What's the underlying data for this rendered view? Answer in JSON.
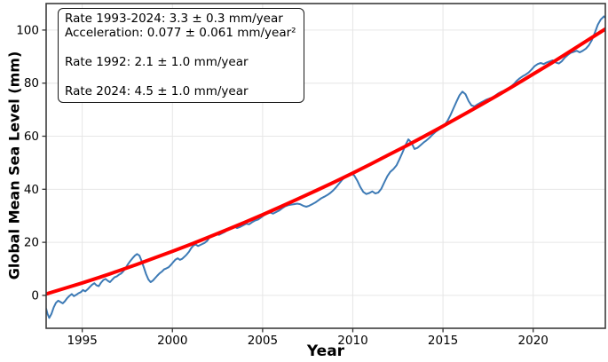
{
  "colors": {
    "observed_line": "#3d7ab5",
    "trend_line": "#ff0000",
    "grid": "#e6e6e6",
    "spine": "#3c3c3c",
    "tick": "#333333",
    "text": "#000000",
    "background": "#ffffff"
  },
  "chart_data": {
    "type": "line",
    "title": "",
    "xlabel": "Year",
    "ylabel": "Global Mean Sea Level (mm)",
    "xlim": [
      1993,
      2024
    ],
    "ylim": [
      -12.4,
      110
    ],
    "x_ticks": [
      1995,
      2000,
      2005,
      2010,
      2015,
      2020
    ],
    "y_ticks": [
      0,
      20,
      40,
      60,
      80,
      100
    ],
    "grid": true,
    "legend": "none",
    "annotations": {
      "lines": [
        "Rate 1993-2024: 3.3 ± 0.3 mm/year",
        "Acceleration: 0.077 ± 0.061 mm/year²",
        "",
        "Rate 1992: 2.1 ± 1.0 mm/year",
        "",
        "Rate 2024: 4.5 ± 1.0 mm/year"
      ]
    },
    "series": [
      {
        "name": "Observed global mean sea level",
        "color": "#3d7ab5",
        "width": 2,
        "points": [
          [
            1993.0,
            -5
          ],
          [
            1993.08,
            -7
          ],
          [
            1993.17,
            -8.5
          ],
          [
            1993.29,
            -7
          ],
          [
            1993.42,
            -4.5
          ],
          [
            1993.54,
            -2.8
          ],
          [
            1993.67,
            -2
          ],
          [
            1993.79,
            -2.5
          ],
          [
            1993.92,
            -3
          ],
          [
            1994.04,
            -2.2
          ],
          [
            1994.17,
            -1
          ],
          [
            1994.29,
            -0.2
          ],
          [
            1994.42,
            0.5
          ],
          [
            1994.54,
            -0.3
          ],
          [
            1994.67,
            0.2
          ],
          [
            1994.79,
            0.8
          ],
          [
            1994.92,
            1.2
          ],
          [
            1995.04,
            2
          ],
          [
            1995.17,
            1.5
          ],
          [
            1995.29,
            2.2
          ],
          [
            1995.42,
            3.2
          ],
          [
            1995.54,
            4
          ],
          [
            1995.67,
            4.6
          ],
          [
            1995.79,
            3.8
          ],
          [
            1995.92,
            3.5
          ],
          [
            1996.04,
            4.8
          ],
          [
            1996.17,
            5.8
          ],
          [
            1996.29,
            6.2
          ],
          [
            1996.42,
            5.5
          ],
          [
            1996.54,
            5
          ],
          [
            1996.67,
            6
          ],
          [
            1996.79,
            6.8
          ],
          [
            1996.92,
            7.2
          ],
          [
            1997.04,
            7.8
          ],
          [
            1997.17,
            8.3
          ],
          [
            1997.29,
            9.2
          ],
          [
            1997.42,
            10.5
          ],
          [
            1997.54,
            11.8
          ],
          [
            1997.67,
            13
          ],
          [
            1997.79,
            14
          ],
          [
            1997.92,
            15
          ],
          [
            1998.04,
            15.6
          ],
          [
            1998.17,
            15
          ],
          [
            1998.29,
            13
          ],
          [
            1998.42,
            10.5
          ],
          [
            1998.54,
            8
          ],
          [
            1998.67,
            6
          ],
          [
            1998.79,
            5
          ],
          [
            1998.92,
            5.6
          ],
          [
            1999.04,
            6.5
          ],
          [
            1999.17,
            7.5
          ],
          [
            1999.29,
            8.3
          ],
          [
            1999.42,
            9
          ],
          [
            1999.54,
            9.8
          ],
          [
            1999.67,
            10.2
          ],
          [
            1999.79,
            10.6
          ],
          [
            1999.92,
            11.5
          ],
          [
            2000.04,
            12.5
          ],
          [
            2000.17,
            13.5
          ],
          [
            2000.29,
            14
          ],
          [
            2000.42,
            13.4
          ],
          [
            2000.54,
            13.8
          ],
          [
            2000.67,
            14.6
          ],
          [
            2000.79,
            15.4
          ],
          [
            2000.92,
            16.5
          ],
          [
            2001.04,
            17.8
          ],
          [
            2001.17,
            18.8
          ],
          [
            2001.29,
            19.2
          ],
          [
            2001.42,
            18.6
          ],
          [
            2001.54,
            19
          ],
          [
            2001.67,
            19.4
          ],
          [
            2001.79,
            19.8
          ],
          [
            2001.92,
            20.5
          ],
          [
            2002.08,
            22
          ],
          [
            2002.25,
            22.8
          ],
          [
            2002.42,
            23.2
          ],
          [
            2002.58,
            22.8
          ],
          [
            2002.75,
            23.4
          ],
          [
            2002.92,
            24
          ],
          [
            2003.08,
            24.8
          ],
          [
            2003.25,
            25.6
          ],
          [
            2003.42,
            26
          ],
          [
            2003.58,
            25.4
          ],
          [
            2003.75,
            25.8
          ],
          [
            2003.92,
            26.4
          ],
          [
            2004.08,
            27
          ],
          [
            2004.25,
            26.8
          ],
          [
            2004.42,
            27.6
          ],
          [
            2004.58,
            28.2
          ],
          [
            2004.75,
            28.6
          ],
          [
            2004.92,
            29.4
          ],
          [
            2005.08,
            30.2
          ],
          [
            2005.25,
            30.8
          ],
          [
            2005.42,
            31.2
          ],
          [
            2005.58,
            30.8
          ],
          [
            2005.75,
            31.4
          ],
          [
            2005.92,
            32
          ],
          [
            2006.08,
            32.8
          ],
          [
            2006.25,
            33.6
          ],
          [
            2006.42,
            34
          ],
          [
            2006.58,
            34.2
          ],
          [
            2006.75,
            34.4
          ],
          [
            2006.92,
            34.6
          ],
          [
            2007.08,
            34.4
          ],
          [
            2007.25,
            33.8
          ],
          [
            2007.42,
            33.4
          ],
          [
            2007.58,
            33.8
          ],
          [
            2007.75,
            34.4
          ],
          [
            2007.92,
            35
          ],
          [
            2008.08,
            35.8
          ],
          [
            2008.25,
            36.6
          ],
          [
            2008.42,
            37.2
          ],
          [
            2008.58,
            37.8
          ],
          [
            2008.75,
            38.6
          ],
          [
            2008.92,
            39.6
          ],
          [
            2009.08,
            40.8
          ],
          [
            2009.25,
            42.2
          ],
          [
            2009.42,
            43.6
          ],
          [
            2009.58,
            44.6
          ],
          [
            2009.75,
            45.4
          ],
          [
            2009.92,
            46
          ],
          [
            2010.08,
            45.2
          ],
          [
            2010.25,
            43.2
          ],
          [
            2010.42,
            40.8
          ],
          [
            2010.58,
            39
          ],
          [
            2010.75,
            38.2
          ],
          [
            2010.92,
            38.6
          ],
          [
            2011.08,
            39.2
          ],
          [
            2011.25,
            38.4
          ],
          [
            2011.42,
            38.8
          ],
          [
            2011.58,
            40.2
          ],
          [
            2011.75,
            42.6
          ],
          [
            2011.92,
            45
          ],
          [
            2012.08,
            46.6
          ],
          [
            2012.25,
            47.6
          ],
          [
            2012.42,
            49
          ],
          [
            2012.58,
            51.2
          ],
          [
            2012.75,
            53.8
          ],
          [
            2012.92,
            56.6
          ],
          [
            2013.08,
            58.8
          ],
          [
            2013.25,
            57.6
          ],
          [
            2013.42,
            55.2
          ],
          [
            2013.58,
            55.6
          ],
          [
            2013.75,
            56.6
          ],
          [
            2013.92,
            57.6
          ],
          [
            2014.08,
            58.4
          ],
          [
            2014.25,
            59.4
          ],
          [
            2014.42,
            60.6
          ],
          [
            2014.58,
            61.6
          ],
          [
            2014.75,
            62.4
          ],
          [
            2014.92,
            63.2
          ],
          [
            2015.08,
            64.2
          ],
          [
            2015.25,
            65.8
          ],
          [
            2015.42,
            68
          ],
          [
            2015.58,
            70.5
          ],
          [
            2015.75,
            73
          ],
          [
            2015.92,
            75.5
          ],
          [
            2016.08,
            76.8
          ],
          [
            2016.25,
            75.8
          ],
          [
            2016.42,
            73.2
          ],
          [
            2016.58,
            71.6
          ],
          [
            2016.75,
            71.2
          ],
          [
            2016.92,
            72
          ],
          [
            2017.08,
            72.6
          ],
          [
            2017.25,
            73.2
          ],
          [
            2017.42,
            73.8
          ],
          [
            2017.58,
            74.2
          ],
          [
            2017.75,
            74.6
          ],
          [
            2017.92,
            75.4
          ],
          [
            2018.08,
            76.2
          ],
          [
            2018.25,
            76.8
          ],
          [
            2018.42,
            77.2
          ],
          [
            2018.58,
            77.8
          ],
          [
            2018.75,
            78.6
          ],
          [
            2018.92,
            79.6
          ],
          [
            2019.08,
            80.8
          ],
          [
            2019.25,
            81.8
          ],
          [
            2019.42,
            82.6
          ],
          [
            2019.58,
            83.2
          ],
          [
            2019.75,
            84
          ],
          [
            2019.92,
            85.2
          ],
          [
            2020.08,
            86.4
          ],
          [
            2020.25,
            87.2
          ],
          [
            2020.42,
            87.6
          ],
          [
            2020.58,
            87.2
          ],
          [
            2020.75,
            87.8
          ],
          [
            2020.92,
            88.2
          ],
          [
            2021.08,
            88.6
          ],
          [
            2021.25,
            87.8
          ],
          [
            2021.42,
            87.4
          ],
          [
            2021.58,
            88.2
          ],
          [
            2021.75,
            89.6
          ],
          [
            2021.92,
            90.6
          ],
          [
            2022.08,
            91.4
          ],
          [
            2022.25,
            91.8
          ],
          [
            2022.42,
            92.2
          ],
          [
            2022.58,
            91.6
          ],
          [
            2022.75,
            92.2
          ],
          [
            2022.92,
            93
          ],
          [
            2023.08,
            94.2
          ],
          [
            2023.25,
            96.2
          ],
          [
            2023.42,
            99
          ],
          [
            2023.58,
            102
          ],
          [
            2023.75,
            104
          ],
          [
            2023.92,
            105.2
          ],
          [
            2024.0,
            104.6
          ]
        ]
      },
      {
        "name": "Quadratic trend fit",
        "color": "#ff0000",
        "width": 4,
        "points": [
          [
            1993,
            0.5
          ],
          [
            1994,
            2.6
          ],
          [
            1995,
            4.7
          ],
          [
            1996,
            6.9
          ],
          [
            1997,
            9.2
          ],
          [
            1998,
            11.6
          ],
          [
            1999,
            14.1
          ],
          [
            2000,
            16.6
          ],
          [
            2001,
            19.2
          ],
          [
            2002,
            21.9
          ],
          [
            2003,
            24.7
          ],
          [
            2004,
            27.5
          ],
          [
            2005,
            30.4
          ],
          [
            2006,
            33.4
          ],
          [
            2007,
            36.5
          ],
          [
            2008,
            39.6
          ],
          [
            2009,
            42.8
          ],
          [
            2010,
            46.1
          ],
          [
            2011,
            49.5
          ],
          [
            2012,
            53.0
          ],
          [
            2013,
            56.5
          ],
          [
            2014,
            60.1
          ],
          [
            2015,
            63.8
          ],
          [
            2016,
            67.6
          ],
          [
            2017,
            71.4
          ],
          [
            2018,
            75.3
          ],
          [
            2019,
            79.3
          ],
          [
            2020,
            83.4
          ],
          [
            2021,
            87.5
          ],
          [
            2022,
            91.8
          ],
          [
            2023,
            96.1
          ],
          [
            2024,
            100.4
          ]
        ]
      }
    ]
  }
}
